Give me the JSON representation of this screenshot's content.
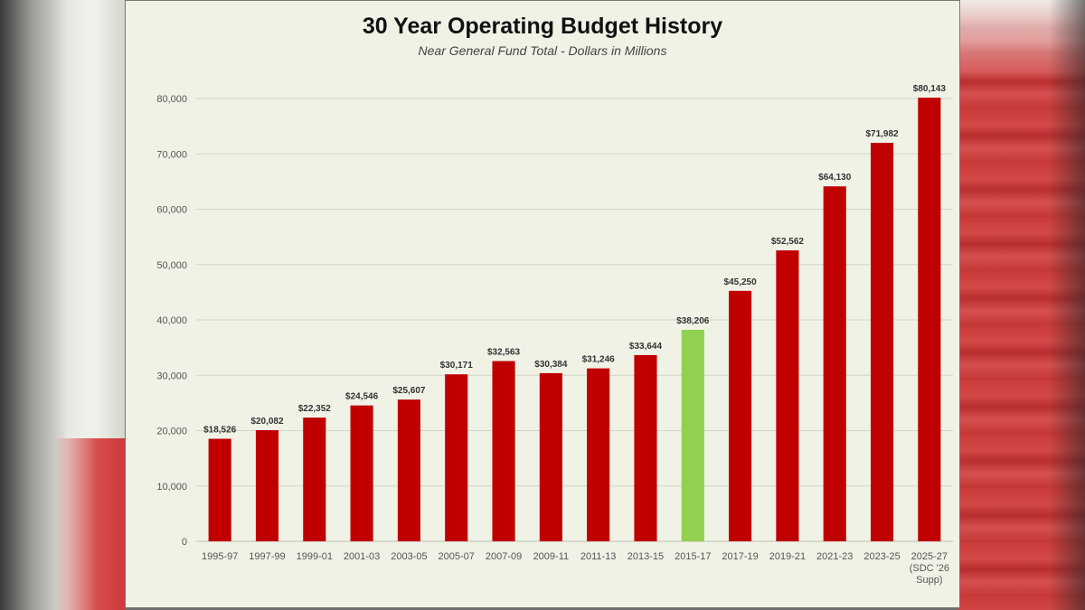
{
  "chart_data": {
    "type": "bar",
    "title": "30 Year Operating Budget History",
    "subtitle": "Near General Fund Total - Dollars in Millions",
    "xlabel": "",
    "ylabel": "",
    "ylim": [
      0,
      80000
    ],
    "yticks": [
      "0",
      "10,000",
      "20,000",
      "30,000",
      "40,000",
      "50,000",
      "60,000",
      "70,000",
      "80,000"
    ],
    "grid": true,
    "categories": [
      [
        "1995-97"
      ],
      [
        "1997-99"
      ],
      [
        "1999-01"
      ],
      [
        "2001-03"
      ],
      [
        "2003-05"
      ],
      [
        "2005-07"
      ],
      [
        "2007-09"
      ],
      [
        "2009-11"
      ],
      [
        "2011-13"
      ],
      [
        "2013-15"
      ],
      [
        "2015-17"
      ],
      [
        "2017-19"
      ],
      [
        "2019-21"
      ],
      [
        "2021-23"
      ],
      [
        "2023-25"
      ],
      [
        "2025-27",
        "(SDC '26",
        "Supp)"
      ]
    ],
    "values": [
      18526,
      20082,
      22352,
      24546,
      25607,
      30171,
      32563,
      30384,
      31246,
      33644,
      38206,
      45250,
      52562,
      64130,
      71982,
      80143
    ],
    "value_labels": [
      "$18,526",
      "$20,082",
      "$22,352",
      "$24,546",
      "$25,607",
      "$30,171",
      "$32,563",
      "$30,384",
      "$31,246",
      "$33,644",
      "$38,206",
      "$45,250",
      "$52,562",
      "$64,130",
      "$71,982",
      "$80,143"
    ],
    "highlight_index": 10,
    "colors": {
      "bar": "#c00000",
      "highlight": "#92d050"
    }
  }
}
